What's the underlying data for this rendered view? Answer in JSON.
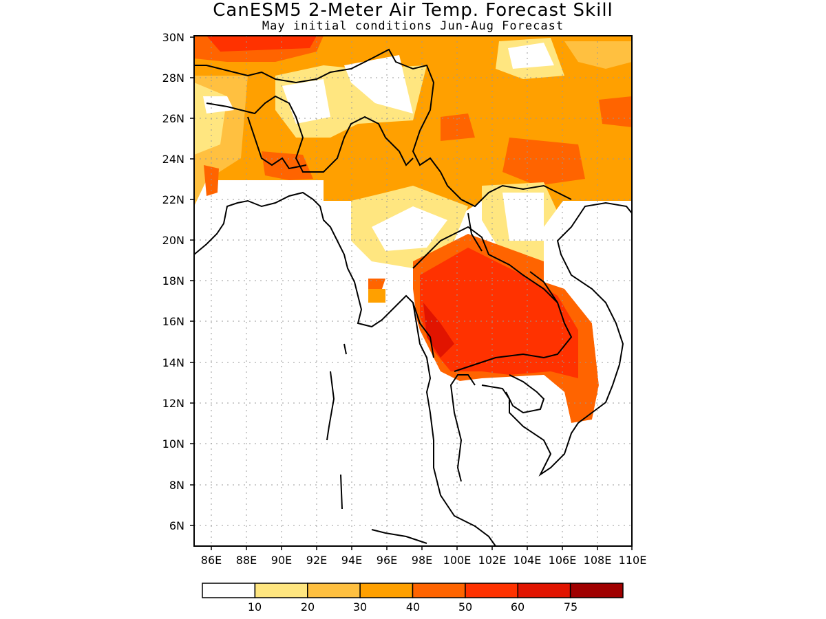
{
  "title": "CanESM5 2-Meter Air Temp. Forecast Skill",
  "subtitle": "May initial conditions  Jun-Aug Forecast",
  "map": {
    "lat_labels": [
      "30N",
      "28N",
      "26N",
      "24N",
      "22N",
      "20N",
      "18N",
      "16N",
      "14N",
      "12N",
      "10N",
      "8N",
      "6N"
    ],
    "lon_labels": [
      "86E",
      "88E",
      "90E",
      "92E",
      "94E",
      "96E",
      "98E",
      "100E",
      "102E",
      "104E",
      "106E",
      "108E",
      "110E"
    ],
    "lat_range": [
      5,
      30
    ],
    "lon_range": [
      85,
      110
    ],
    "grid": "dotted"
  },
  "colorbar": {
    "labels": [
      "10",
      "20",
      "30",
      "40",
      "50",
      "60",
      "75"
    ],
    "colors": [
      "#ffffff",
      "#ffe680",
      "#ffc040",
      "#ffa000",
      "#ff6400",
      "#ff3200",
      "#e11400",
      "#a00000"
    ]
  }
}
